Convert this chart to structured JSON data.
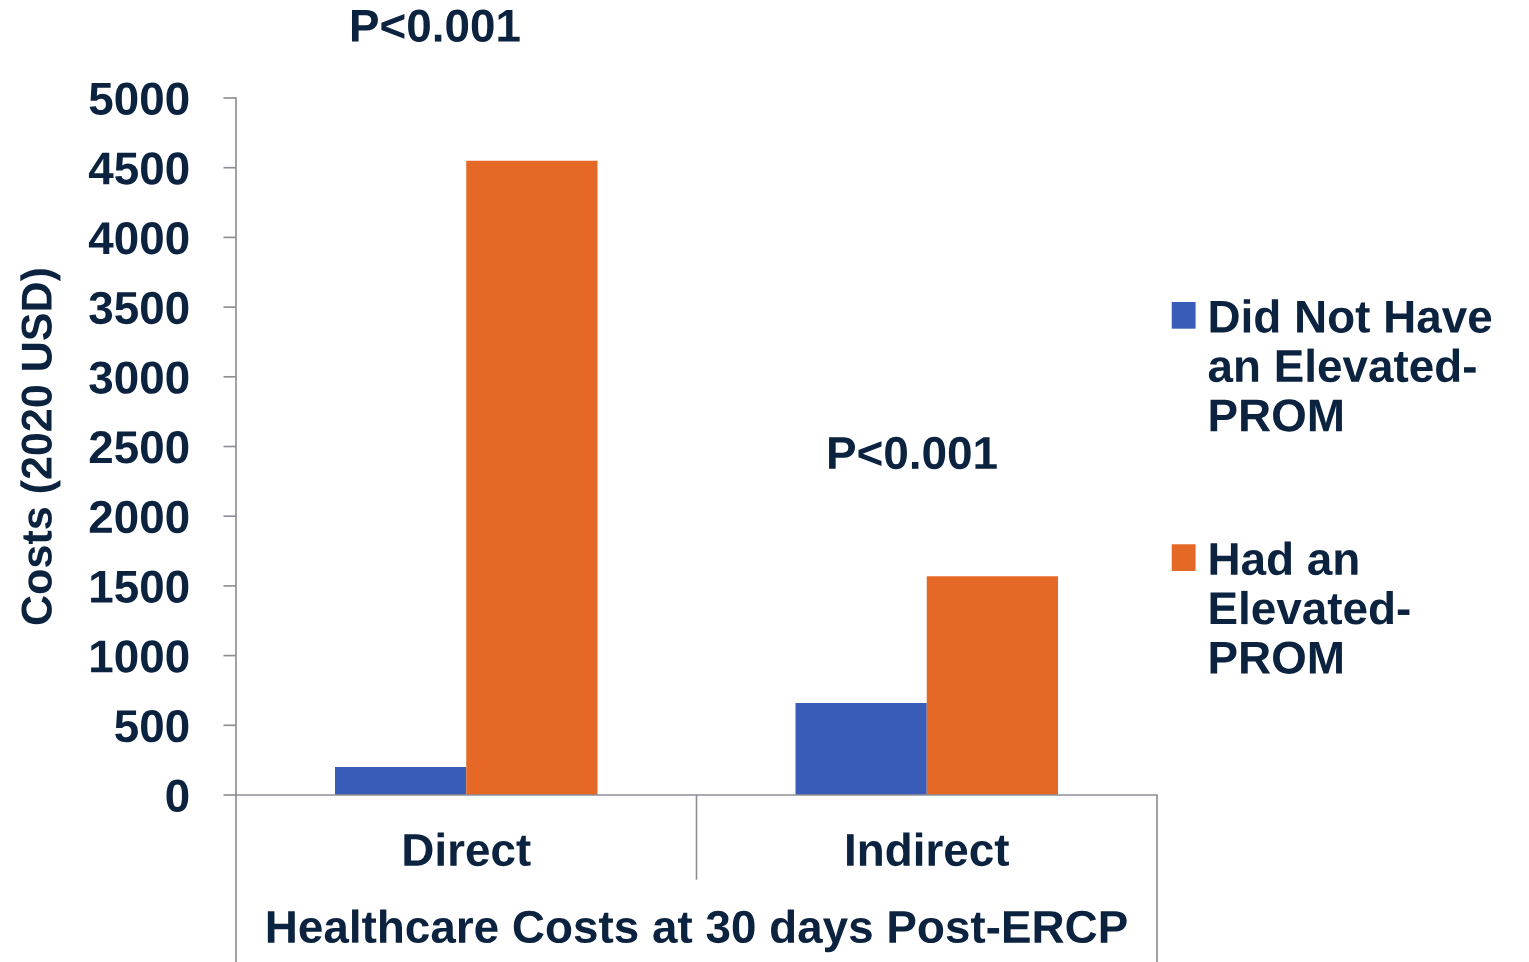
{
  "chart_data": {
    "type": "bar",
    "categories": [
      "Direct",
      "Indirect"
    ],
    "series": [
      {
        "name": "Did Not Have\nan Elevated-\nPROM",
        "color": "#385cb8",
        "values": [
          200,
          660
        ]
      },
      {
        "name": "Had an\nElevated-\nPROM",
        "color": "#e66826",
        "values": [
          4550,
          1570
        ]
      }
    ],
    "ylabel": "Costs (2020 USD)",
    "xlabel": "Healthcare Costs at 30 days Post-ERCP",
    "ylim": [
      0,
      5000
    ],
    "yticks": [
      0,
      500,
      1000,
      1500,
      2000,
      2500,
      3000,
      3500,
      4000,
      4500,
      5000
    ],
    "annotations": [
      "P<0.001",
      "P<0.001"
    ],
    "legend": "right"
  }
}
